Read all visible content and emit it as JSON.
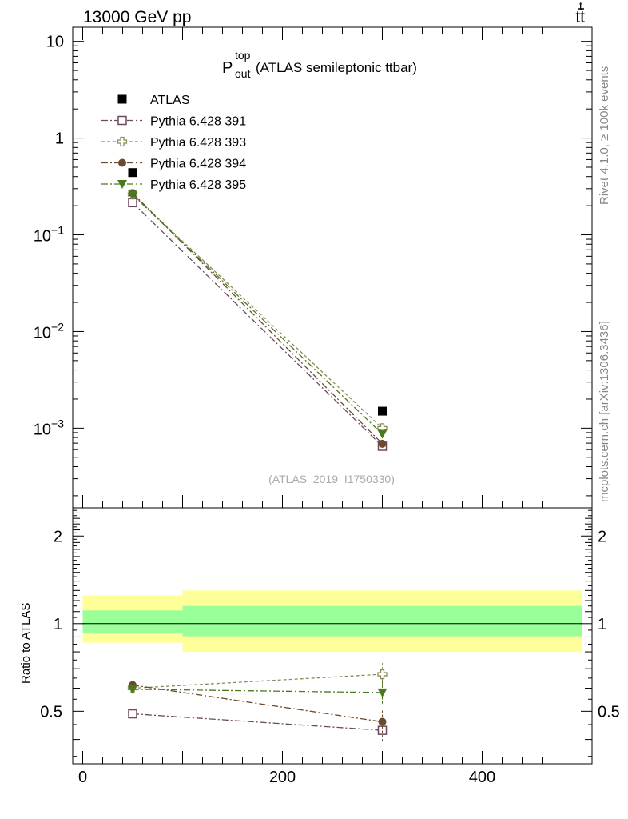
{
  "header": {
    "left": "13000 GeV pp",
    "right_main": "tt",
    "right_bar": "t"
  },
  "side_labels": {
    "rivet": "Rivet 4.1.0, ≥ 100k events",
    "mcplots": "mcplots.cern.ch [arXiv:1306.3436]"
  },
  "title": {
    "main": "P",
    "sup": "top",
    "sub": "out",
    "rest": "(ATLAS semileptonic ttbar)"
  },
  "analysis_tag": "(ATLAS_2019_I1750330)",
  "ratio_ylabel": "Ratio to ATLAS",
  "colors": {
    "data": "#000000",
    "py391": "#6b4a5e",
    "py393": "#8c8c5a",
    "py394": "#6b4a2e",
    "py395": "#4a7a1e",
    "band_outer": "#ffff99",
    "band_inner": "#99ff99"
  },
  "chart_data": {
    "type": "scatter",
    "x_unit": "",
    "x": [
      50,
      300
    ],
    "x_bins": [
      [
        0,
        100
      ],
      [
        100,
        500
      ]
    ],
    "xlim": [
      -10,
      510
    ],
    "x_ticks": [
      0,
      200,
      400
    ],
    "x_tick_labels": [
      "0",
      "200",
      "400"
    ],
    "main": {
      "yscale": "log",
      "ylim": [
        0.00015,
        14
      ],
      "y_ticks": [
        0.001,
        0.01,
        0.1,
        1,
        10
      ],
      "y_tick_labels": [
        {
          "base": "10",
          "exp": "−3"
        },
        {
          "base": "10",
          "exp": "−2"
        },
        {
          "base": "10",
          "exp": "−1"
        },
        {
          "base": "1",
          "exp": ""
        },
        {
          "base": "10",
          "exp": ""
        }
      ],
      "series": [
        {
          "name": "ATLAS",
          "key": "data",
          "values": [
            0.44,
            0.0015
          ],
          "marker": "square",
          "line": "none"
        },
        {
          "name": "Pythia 6.428 391",
          "key": "py391",
          "values": [
            0.215,
            0.00065
          ],
          "marker": "open-square",
          "line": "dashdot"
        },
        {
          "name": "Pythia 6.428 393",
          "key": "py393",
          "values": [
            0.262,
            0.001
          ],
          "marker": "open-cross",
          "line": "dashed"
        },
        {
          "name": "Pythia 6.428 394",
          "key": "py394",
          "values": [
            0.27,
            0.00069
          ],
          "marker": "circle",
          "line": "dashdot"
        },
        {
          "name": "Pythia 6.428 395",
          "key": "py395",
          "values": [
            0.26,
            0.00087
          ],
          "marker": "triangle-down",
          "line": "dashdot"
        }
      ]
    },
    "ratio": {
      "yscale": "log",
      "ylim": [
        0.33,
        2.5
      ],
      "y_ticks": [
        0.5,
        1,
        2
      ],
      "y_tick_labels": [
        "0.5",
        "1",
        "2"
      ],
      "band_outer": [
        [
          0.86,
          1.25
        ],
        [
          0.8,
          1.3
        ]
      ],
      "band_inner": [
        [
          0.925,
          1.11
        ],
        [
          0.905,
          1.15
        ]
      ],
      "series": [
        {
          "key": "py391",
          "values": [
            0.49,
            0.43
          ]
        },
        {
          "key": "py393",
          "values": [
            0.6,
            0.67
          ]
        },
        {
          "key": "py394",
          "values": [
            0.615,
            0.46
          ]
        },
        {
          "key": "py395",
          "values": [
            0.595,
            0.58
          ]
        }
      ]
    }
  }
}
